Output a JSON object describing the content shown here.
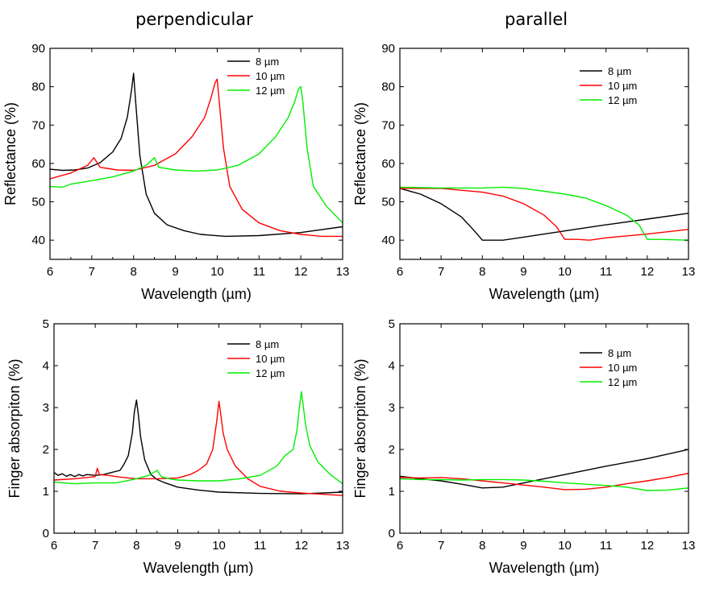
{
  "titles": {
    "left": "perpendicular",
    "right": "parallel"
  },
  "legend_labels": [
    "8 µm",
    "10 µm",
    "12 µm"
  ],
  "series_colors": {
    "8 µm": "#000000",
    "10 µm": "#ff0000",
    "12 µm": "#00ee00"
  },
  "chart_data": [
    {
      "id": "refl-perp",
      "type": "line",
      "title": "perpendicular",
      "xlabel": "Wavelength (µm)",
      "ylabel": "Reflectance (%)",
      "xlim": [
        6,
        13
      ],
      "ylim": [
        35,
        90
      ],
      "xticks": [
        6,
        7,
        8,
        9,
        10,
        11,
        12,
        13
      ],
      "yticks": [
        40,
        50,
        60,
        70,
        80,
        90
      ],
      "legend": "top-right",
      "series": [
        {
          "name": "8 µm",
          "x": [
            6,
            6.3,
            6.6,
            6.9,
            7.2,
            7.5,
            7.7,
            7.85,
            7.95,
            8.0,
            8.05,
            8.15,
            8.3,
            8.5,
            8.8,
            9.2,
            9.6,
            10.2,
            11,
            12,
            13
          ],
          "y": [
            58.5,
            58.2,
            58.3,
            58.8,
            60.2,
            63,
            66.5,
            72,
            79,
            83.5,
            76,
            62,
            52,
            47,
            44,
            42.5,
            41.5,
            41,
            41.2,
            42,
            43.5
          ]
        },
        {
          "name": "10 µm",
          "x": [
            6,
            6.5,
            6.9,
            7.05,
            7.2,
            7.6,
            8.0,
            8.5,
            9.0,
            9.4,
            9.7,
            9.85,
            9.95,
            10.0,
            10.05,
            10.15,
            10.3,
            10.6,
            11,
            11.5,
            12,
            12.5,
            13
          ],
          "y": [
            56,
            57.5,
            59.5,
            61.5,
            59,
            58.3,
            58.2,
            59.5,
            62.5,
            67,
            72,
            77,
            81,
            82,
            76,
            64,
            54,
            48,
            44.5,
            42.5,
            41.5,
            41,
            41
          ]
        },
        {
          "name": "12 µm",
          "x": [
            6,
            6.3,
            6.5,
            7,
            7.5,
            8,
            8.3,
            8.5,
            8.6,
            9,
            9.5,
            10,
            10.5,
            11,
            11.4,
            11.7,
            11.85,
            11.95,
            12.0,
            12.05,
            12.15,
            12.3,
            12.6,
            13
          ],
          "y": [
            54,
            53.8,
            54.6,
            55.5,
            56.5,
            58,
            59.5,
            61.5,
            59,
            58.3,
            58,
            58.3,
            59.5,
            62.5,
            67,
            72,
            76,
            79.5,
            80,
            76,
            64,
            54,
            49,
            44.5
          ]
        }
      ]
    },
    {
      "id": "refl-par",
      "type": "line",
      "title": "parallel",
      "xlabel": "Wavelength (µm)",
      "ylabel": "Reflectance (%)",
      "xlim": [
        6,
        13
      ],
      "ylim": [
        35,
        90
      ],
      "xticks": [
        6,
        7,
        8,
        9,
        10,
        11,
        12,
        13
      ],
      "yticks": [
        40,
        50,
        60,
        70,
        80,
        90
      ],
      "legend": "top-right",
      "series": [
        {
          "name": "8 µm",
          "x": [
            6,
            6.5,
            7,
            7.5,
            7.8,
            8.0,
            8.3,
            8.5,
            9,
            10,
            11,
            12,
            13
          ],
          "y": [
            53.5,
            52,
            49.5,
            46,
            42.5,
            40,
            40,
            40,
            40.8,
            42.4,
            44,
            45.5,
            47
          ]
        },
        {
          "name": "10 µm",
          "x": [
            6,
            7,
            8,
            8.5,
            9,
            9.5,
            9.8,
            10.0,
            10.3,
            10.6,
            11,
            12,
            13
          ],
          "y": [
            53.5,
            53.5,
            52.5,
            51.5,
            49.5,
            46.5,
            43.5,
            40.2,
            40.2,
            40,
            40.6,
            41.6,
            42.8
          ]
        },
        {
          "name": "12 µm",
          "x": [
            6,
            7,
            8,
            8.5,
            9,
            10,
            10.5,
            11,
            11.5,
            11.8,
            12.0,
            12.3,
            13
          ],
          "y": [
            53.8,
            53.6,
            53.6,
            53.8,
            53.5,
            52,
            51,
            49,
            46.5,
            44,
            40.2,
            40.2,
            40
          ]
        }
      ]
    },
    {
      "id": "abs-perp",
      "type": "line",
      "xlabel": "Wavelength (µm)",
      "ylabel": "Finger absorpiton (%)",
      "xlim": [
        6,
        13
      ],
      "ylim": [
        0,
        5
      ],
      "xticks": [
        6,
        7,
        8,
        9,
        10,
        11,
        12,
        13
      ],
      "yticks": [
        0,
        1,
        2,
        3,
        4,
        5
      ],
      "legend": "top-right",
      "series": [
        {
          "name": "8 µm",
          "x": [
            6,
            6.1,
            6.2,
            6.3,
            6.4,
            6.5,
            6.6,
            6.7,
            6.8,
            7,
            7.2,
            7.4,
            7.6,
            7.7,
            7.8,
            7.9,
            7.95,
            8.0,
            8.05,
            8.1,
            8.2,
            8.35,
            8.5,
            8.7,
            9,
            9.5,
            10,
            11,
            12,
            13
          ],
          "y": [
            1.45,
            1.38,
            1.42,
            1.36,
            1.4,
            1.35,
            1.4,
            1.37,
            1.4,
            1.38,
            1.4,
            1.45,
            1.5,
            1.65,
            1.85,
            2.4,
            2.9,
            3.18,
            2.8,
            2.3,
            1.75,
            1.4,
            1.28,
            1.2,
            1.1,
            1.03,
            0.98,
            0.95,
            0.94,
            0.98
          ]
        },
        {
          "name": "10 µm",
          "x": [
            6,
            6.5,
            7,
            7.05,
            7.1,
            7.3,
            7.6,
            8,
            8.5,
            9,
            9.3,
            9.5,
            9.7,
            9.85,
            9.95,
            10.0,
            10.05,
            10.1,
            10.2,
            10.4,
            10.7,
            11,
            11.5,
            12,
            12.5,
            13
          ],
          "y": [
            1.27,
            1.3,
            1.35,
            1.55,
            1.4,
            1.38,
            1.34,
            1.3,
            1.3,
            1.32,
            1.4,
            1.5,
            1.65,
            2.0,
            2.7,
            3.15,
            2.8,
            2.4,
            2.0,
            1.6,
            1.3,
            1.12,
            1.0,
            0.96,
            0.93,
            0.9
          ]
        },
        {
          "name": "12 µm",
          "x": [
            6,
            6.5,
            7,
            7.5,
            8,
            8.3,
            8.5,
            8.6,
            8.8,
            9,
            9.5,
            10,
            10.5,
            11,
            11.4,
            11.6,
            11.8,
            11.9,
            11.95,
            12.0,
            12.05,
            12.1,
            12.2,
            12.4,
            12.7,
            13
          ],
          "y": [
            1.22,
            1.18,
            1.2,
            1.2,
            1.3,
            1.38,
            1.5,
            1.35,
            1.3,
            1.27,
            1.25,
            1.25,
            1.3,
            1.38,
            1.6,
            1.85,
            2.0,
            2.5,
            3.0,
            3.38,
            3.0,
            2.6,
            2.1,
            1.7,
            1.4,
            1.18
          ]
        }
      ]
    },
    {
      "id": "abs-par",
      "type": "line",
      "xlabel": "Wavelength (µm)",
      "ylabel": "Finger absorpiton (%)",
      "xlim": [
        6,
        13
      ],
      "ylim": [
        0,
        5
      ],
      "xticks": [
        6,
        7,
        8,
        9,
        10,
        11,
        12,
        13
      ],
      "yticks": [
        0,
        1,
        2,
        3,
        4,
        5
      ],
      "legend": "top-right",
      "series": [
        {
          "name": "8 µm",
          "x": [
            6,
            6.5,
            7,
            7.5,
            8,
            8.5,
            9,
            10,
            11,
            12,
            13
          ],
          "y": [
            1.36,
            1.3,
            1.25,
            1.17,
            1.08,
            1.1,
            1.2,
            1.4,
            1.6,
            1.78,
            2.0
          ]
        },
        {
          "name": "10 µm",
          "x": [
            6,
            6.5,
            7,
            7.5,
            8,
            8.5,
            9,
            9.5,
            10,
            10.5,
            11,
            11.5,
            12,
            12.5,
            13
          ],
          "y": [
            1.33,
            1.32,
            1.33,
            1.3,
            1.25,
            1.2,
            1.15,
            1.1,
            1.04,
            1.05,
            1.1,
            1.18,
            1.25,
            1.33,
            1.43
          ]
        },
        {
          "name": "12 µm",
          "x": [
            6,
            6.5,
            7,
            7.5,
            8,
            8.5,
            9,
            9.5,
            10,
            10.5,
            11,
            11.5,
            12,
            12.5,
            13
          ],
          "y": [
            1.3,
            1.28,
            1.28,
            1.27,
            1.28,
            1.28,
            1.27,
            1.24,
            1.2,
            1.17,
            1.14,
            1.1,
            1.02,
            1.03,
            1.08
          ]
        }
      ]
    }
  ]
}
